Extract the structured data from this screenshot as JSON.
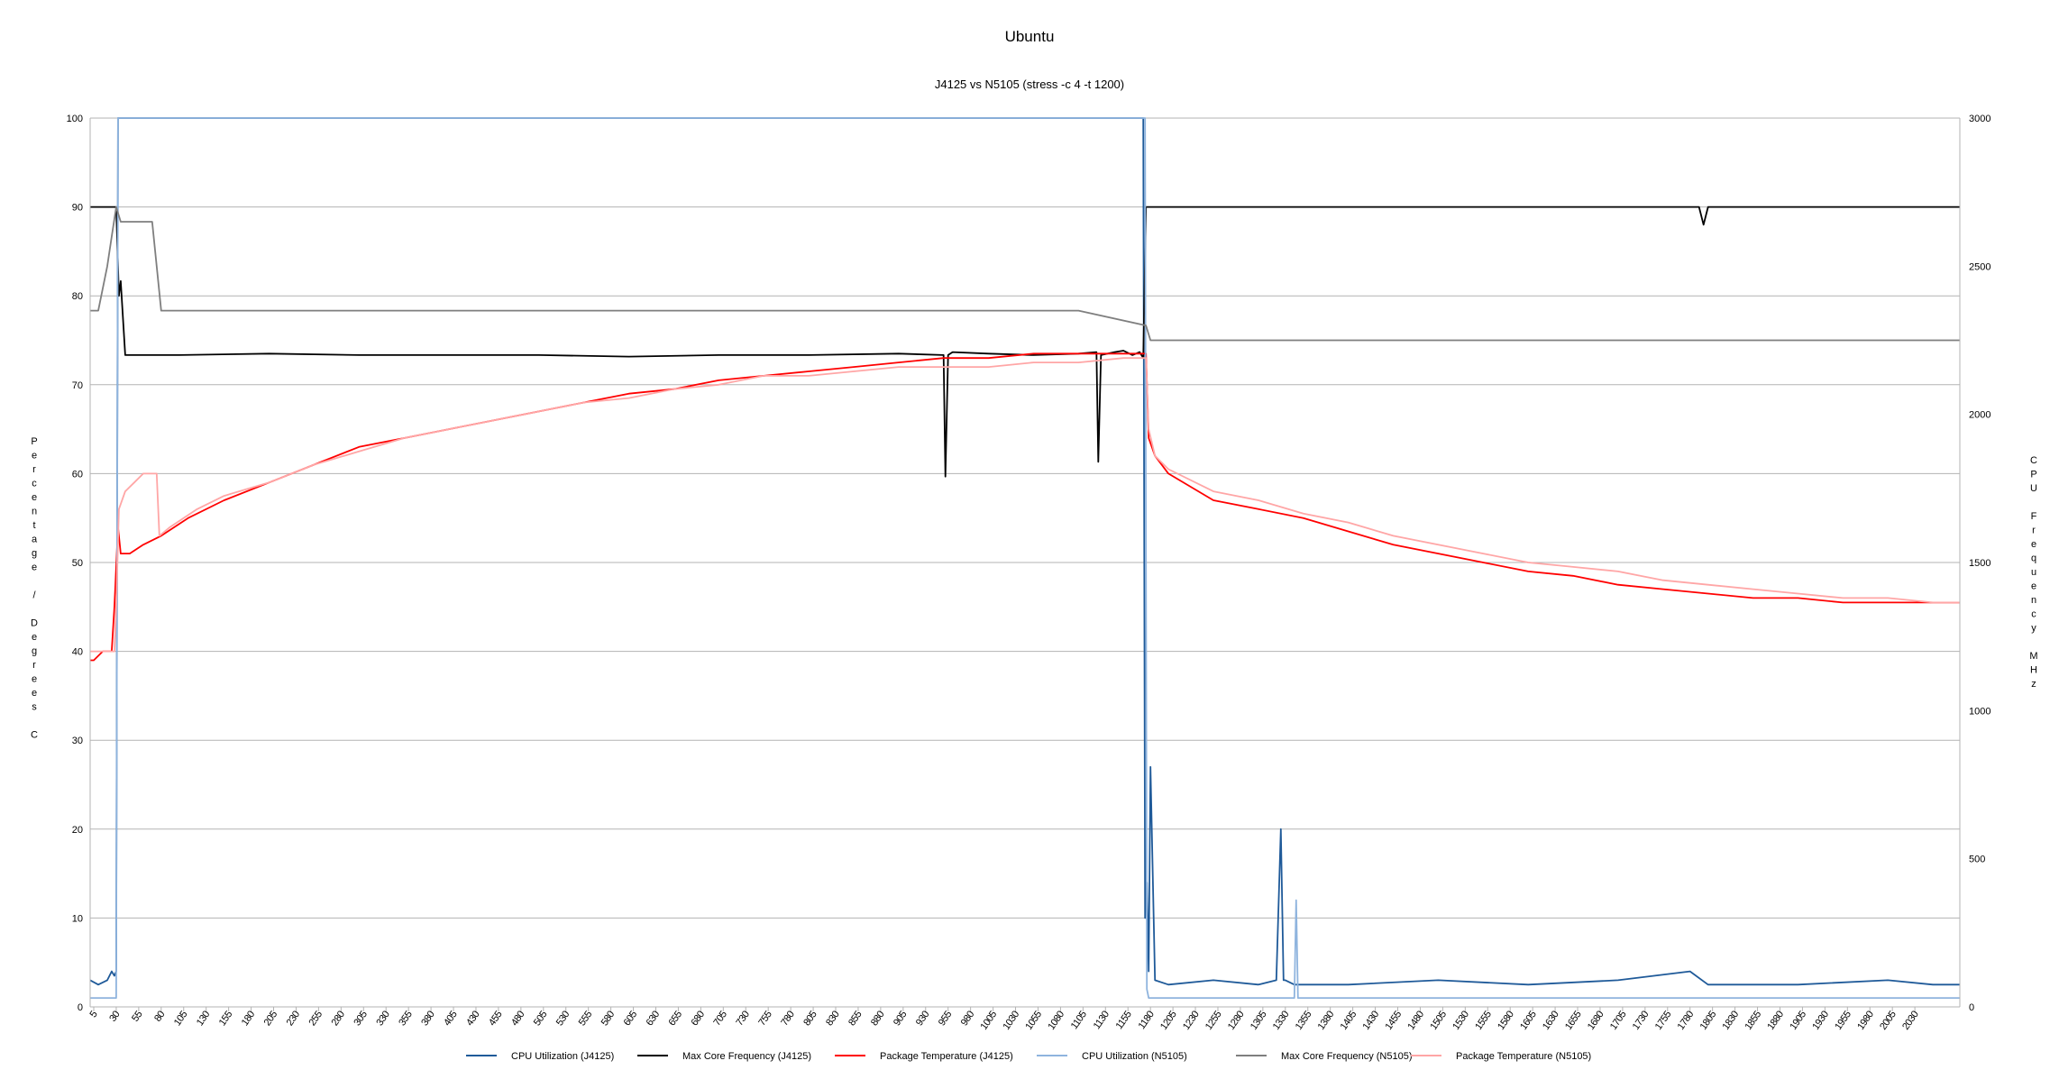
{
  "chart_data": {
    "type": "line",
    "title": "Ubuntu",
    "subtitle": "J4125 vs N5105 (stress -c 4 -t 1200)",
    "ylabel": "Percentage / Degrees C",
    "y2label": "CPU Frequency MHz",
    "xlabel": "",
    "xlim": [
      1,
      2080
    ],
    "ylim": [
      0,
      100
    ],
    "y2lim": [
      0,
      3000
    ],
    "yticks": [
      0,
      10,
      20,
      30,
      40,
      50,
      60,
      70,
      80,
      90,
      100
    ],
    "y2ticks": [
      0,
      500,
      1000,
      1500,
      2000,
      2500,
      3000
    ],
    "xticks": [
      5,
      30,
      55,
      80,
      105,
      130,
      155,
      180,
      205,
      230,
      255,
      280,
      305,
      330,
      355,
      380,
      405,
      430,
      455,
      480,
      505,
      530,
      555,
      580,
      605,
      630,
      655,
      680,
      705,
      730,
      755,
      780,
      805,
      830,
      855,
      880,
      905,
      930,
      955,
      980,
      1005,
      1030,
      1055,
      1080,
      1105,
      1130,
      1155,
      1180,
      1205,
      1230,
      1255,
      1280,
      1305,
      1330,
      1355,
      1380,
      1405,
      1430,
      1455,
      1480,
      1505,
      1530,
      1555,
      1580,
      1605,
      1630,
      1655,
      1680,
      1705,
      1730,
      1755,
      1780,
      1805,
      1830,
      1855,
      1880,
      1905,
      1930,
      1955,
      1980,
      2005,
      2030
    ],
    "grid": true,
    "legend_position": "bottom",
    "series": [
      {
        "name": "CPU Utilization (J4125)",
        "axis": "left",
        "color": "#1f5a99",
        "x": [
          1,
          10,
          20,
          25,
          28,
          30,
          32,
          100,
          300,
          500,
          700,
          900,
          1100,
          1150,
          1170,
          1172,
          1174,
          1176,
          1178,
          1180,
          1185,
          1200,
          1250,
          1300,
          1320,
          1325,
          1328,
          1330,
          1340,
          1400,
          1500,
          1600,
          1700,
          1780,
          1800,
          1900,
          2000,
          2050,
          2080
        ],
        "y": [
          3,
          2.5,
          3,
          4,
          3.5,
          4,
          100,
          100,
          100,
          100,
          100,
          100,
          100,
          100,
          100,
          100,
          10,
          14,
          4,
          27,
          3,
          2.5,
          3,
          2.5,
          3,
          20,
          3,
          3,
          2.5,
          2.5,
          3,
          2.5,
          3,
          4,
          2.5,
          2.5,
          3,
          2.5,
          2.5
        ]
      },
      {
        "name": "Max Core Frequency (J4125)",
        "axis": "right",
        "color": "#000000",
        "x": [
          1,
          10,
          20,
          25,
          30,
          33,
          35,
          40,
          100,
          200,
          300,
          400,
          500,
          600,
          700,
          800,
          900,
          950,
          952,
          955,
          960,
          1000,
          1050,
          1100,
          1120,
          1122,
          1125,
          1140,
          1150,
          1160,
          1168,
          1172,
          1175,
          1180,
          1400,
          1600,
          1790,
          1795,
          1800,
          2000,
          2080
        ],
        "y": [
          2700,
          2700,
          2700,
          2700,
          2700,
          2400,
          2450,
          2200,
          2200,
          2205,
          2200,
          2200,
          2200,
          2195,
          2200,
          2200,
          2205,
          2200,
          1790,
          2200,
          2210,
          2205,
          2200,
          2205,
          2210,
          1840,
          2200,
          2210,
          2215,
          2200,
          2210,
          2190,
          2700,
          2700,
          2700,
          2700,
          2700,
          2640,
          2700,
          2700,
          2700
        ]
      },
      {
        "name": "Package Temperature (J4125)",
        "axis": "left",
        "color": "#ff0000",
        "x": [
          1,
          5,
          15,
          25,
          28,
          32,
          35,
          45,
          60,
          80,
          110,
          150,
          200,
          250,
          300,
          350,
          400,
          450,
          500,
          550,
          600,
          650,
          700,
          750,
          800,
          850,
          900,
          950,
          1000,
          1050,
          1100,
          1150,
          1175,
          1178,
          1185,
          1200,
          1250,
          1300,
          1350,
          1400,
          1450,
          1500,
          1550,
          1600,
          1650,
          1700,
          1750,
          1800,
          1850,
          1900,
          1950,
          2000,
          2050,
          2080
        ],
        "y": [
          39,
          39,
          40,
          40,
          45,
          54,
          51,
          51,
          52,
          53,
          55,
          57,
          59,
          61,
          63,
          64,
          65,
          66,
          67,
          68,
          69,
          69.5,
          70.5,
          71,
          71.5,
          72,
          72.5,
          73,
          73,
          73.5,
          73.5,
          73.5,
          73.5,
          64,
          62,
          60,
          57,
          56,
          55,
          53.5,
          52,
          51,
          50,
          49,
          48.5,
          47.5,
          47,
          46.5,
          46,
          46,
          45.5,
          45.5,
          45.5,
          45.5
        ]
      },
      {
        "name": "CPU Utilization (N5105)",
        "axis": "left",
        "color": "#8fb4de",
        "x": [
          1,
          20,
          28,
          30,
          32,
          100,
          300,
          500,
          700,
          900,
          1100,
          1170,
          1174,
          1176,
          1178,
          1180,
          1190,
          1250,
          1300,
          1340,
          1342,
          1344,
          1346,
          1400,
          1500,
          1600,
          1700,
          1800,
          1900,
          2000,
          2080
        ],
        "y": [
          1,
          1,
          1,
          1,
          100,
          100,
          100,
          100,
          100,
          100,
          100,
          100,
          100,
          2,
          1,
          1,
          1,
          1,
          1,
          1,
          12,
          1,
          1,
          1,
          1,
          1,
          1,
          1,
          1,
          1,
          1
        ]
      },
      {
        "name": "Max Core Frequency (N5105)",
        "axis": "right",
        "color": "#7f7f7f",
        "x": [
          1,
          10,
          20,
          25,
          30,
          35,
          45,
          50,
          60,
          70,
          80,
          100,
          200,
          300,
          400,
          500,
          600,
          700,
          800,
          900,
          1000,
          1100,
          1175,
          1180,
          1200,
          1250,
          1300,
          1350,
          1400,
          1450,
          1500,
          1550,
          1600,
          1650,
          1700,
          1750,
          1800,
          1850,
          1900,
          1950,
          2000,
          2050,
          2080
        ],
        "y": [
          2350,
          2350,
          2500,
          2600,
          2700,
          2650,
          2650,
          2650,
          2650,
          2650,
          2350,
          2350,
          2350,
          2350,
          2350,
          2350,
          2350,
          2350,
          2350,
          2350,
          2350,
          2350,
          2300,
          2250,
          2250,
          2250,
          2250,
          2250,
          2250,
          2250,
          2250,
          2250,
          2250,
          2250,
          2250,
          2250,
          2250,
          2250,
          2250,
          2250,
          2250,
          2250,
          2250
        ]
      },
      {
        "name": "Package Temperature (N5105)",
        "axis": "left",
        "color": "#ffa6a6",
        "x": [
          1,
          15,
          25,
          28,
          30,
          33,
          40,
          50,
          60,
          75,
          78,
          90,
          120,
          150,
          200,
          250,
          300,
          350,
          400,
          450,
          500,
          550,
          600,
          650,
          700,
          750,
          800,
          850,
          900,
          950,
          1000,
          1050,
          1100,
          1150,
          1175,
          1178,
          1185,
          1200,
          1250,
          1300,
          1350,
          1400,
          1450,
          1500,
          1550,
          1600,
          1650,
          1700,
          1750,
          1800,
          1850,
          1900,
          1950,
          2000,
          2050,
          2080
        ],
        "y": [
          40,
          40,
          40,
          40,
          45,
          56,
          58,
          59,
          60,
          60,
          53,
          54,
          56,
          57.5,
          59,
          61,
          62.5,
          64,
          65,
          66,
          67,
          68,
          68.5,
          69.5,
          70,
          71,
          71,
          71.5,
          72,
          72,
          72,
          72.5,
          72.5,
          73,
          73,
          65,
          62,
          60.5,
          58,
          57,
          55.5,
          54.5,
          53,
          52,
          51,
          50,
          49.5,
          49,
          48,
          47.5,
          47,
          46.5,
          46,
          46,
          45.5,
          45.5
        ]
      }
    ]
  }
}
